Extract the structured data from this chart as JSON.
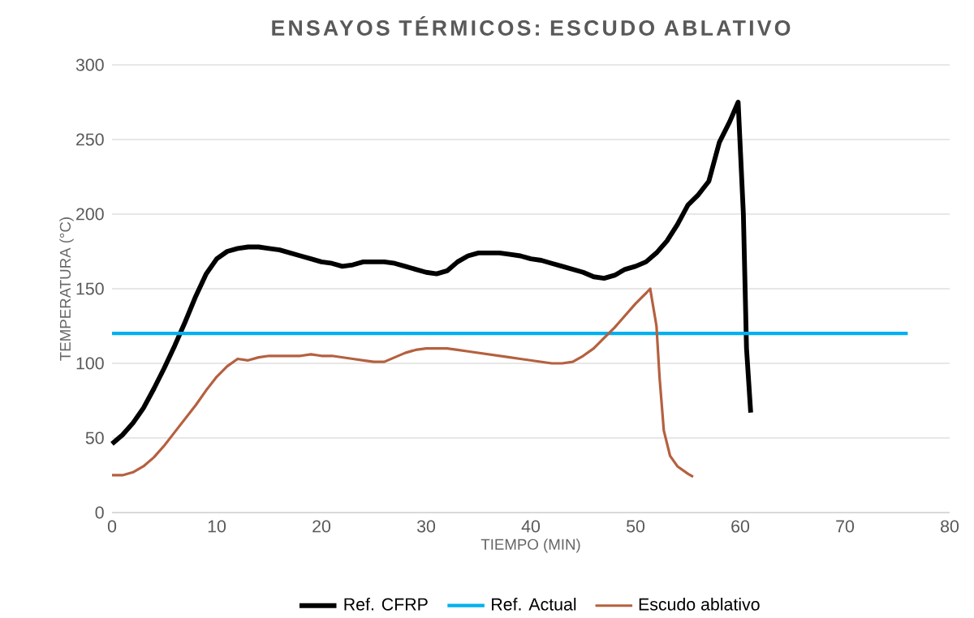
{
  "chart_data": {
    "type": "line",
    "title": "ENSAYOS TÉRMICOS: ESCUDO ABLATIVO",
    "xlabel": "TIEMPO (MIN)",
    "ylabel": "TEMPERATURA (°C)",
    "xlim": [
      0,
      80
    ],
    "ylim": [
      0,
      300
    ],
    "xticks": [
      0,
      10,
      20,
      30,
      40,
      50,
      60,
      70,
      80
    ],
    "yticks": [
      0,
      50,
      100,
      150,
      200,
      250,
      300
    ],
    "grid": "y",
    "legend": "bottom",
    "series": [
      {
        "name": "Ref. CFRP",
        "color": "#000000",
        "x": [
          0,
          1,
          2,
          3,
          4,
          5,
          6,
          7,
          8,
          9,
          10,
          11,
          12,
          13,
          14,
          15,
          16,
          17,
          18,
          19,
          20,
          21,
          22,
          23,
          24,
          25,
          26,
          27,
          28,
          29,
          30,
          31,
          32,
          33,
          34,
          35,
          36,
          37,
          38,
          39,
          40,
          41,
          42,
          43,
          44,
          45,
          46,
          47,
          48,
          49,
          50,
          51,
          52,
          53,
          54,
          55,
          56,
          57,
          58,
          59,
          59.8,
          60.3,
          60.6,
          61
        ],
        "values": [
          46,
          52,
          60,
          70,
          83,
          97,
          112,
          128,
          145,
          160,
          170,
          175,
          177,
          178,
          178,
          177,
          176,
          174,
          172,
          170,
          168,
          167,
          165,
          166,
          168,
          168,
          168,
          167,
          165,
          163,
          161,
          160,
          162,
          168,
          172,
          174,
          174,
          174,
          173,
          172,
          170,
          169,
          167,
          165,
          163,
          161,
          158,
          157,
          159,
          163,
          165,
          168,
          174,
          182,
          193,
          206,
          213,
          222,
          248,
          262,
          275,
          200,
          110,
          67
        ]
      },
      {
        "name": "Ref. Actual",
        "color": "#00b0f0",
        "x": [
          0,
          76
        ],
        "values": [
          120,
          120
        ]
      },
      {
        "name": "Escudo ablativo",
        "color": "#b5603f",
        "x": [
          0,
          1,
          2,
          3,
          4,
          5,
          6,
          7,
          8,
          9,
          10,
          11,
          12,
          13,
          14,
          15,
          16,
          17,
          18,
          19,
          20,
          21,
          22,
          23,
          24,
          25,
          26,
          27,
          28,
          29,
          30,
          31,
          32,
          33,
          34,
          35,
          36,
          37,
          38,
          39,
          40,
          41,
          42,
          43,
          44,
          45,
          46,
          47,
          48,
          49,
          50,
          51,
          51.4,
          52,
          52.3,
          52.7,
          53.3,
          54,
          55,
          55.5
        ],
        "values": [
          25,
          25,
          27,
          31,
          37,
          45,
          54,
          63,
          72,
          82,
          91,
          98,
          103,
          102,
          104,
          105,
          105,
          105,
          105,
          106,
          105,
          105,
          104,
          103,
          102,
          101,
          101,
          104,
          107,
          109,
          110,
          110,
          110,
          109,
          108,
          107,
          106,
          105,
          104,
          103,
          102,
          101,
          100,
          100,
          101,
          105,
          110,
          117,
          124,
          132,
          140,
          147,
          150,
          125,
          90,
          55,
          38,
          31,
          26,
          24
        ]
      }
    ]
  }
}
